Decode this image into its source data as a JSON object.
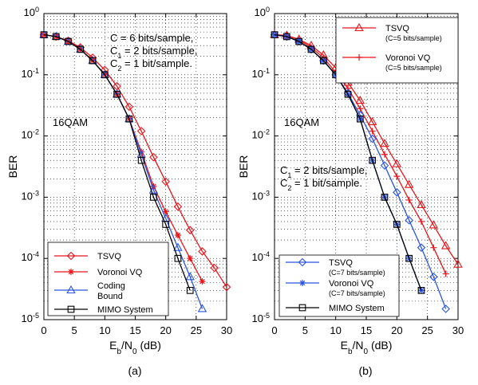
{
  "chart_data": [
    {
      "type": "line",
      "panel_label": "(a)",
      "xlabel": "E_b/N_0 (dB)",
      "ylabel": "BER",
      "xlim": [
        0,
        30
      ],
      "ylim": [
        1e-05,
        1
      ],
      "yscale": "log",
      "xticks": [
        "0",
        "5",
        "10",
        "15",
        "20",
        "25",
        "30"
      ],
      "yticks": [
        "10^0",
        "10^-1",
        "10^-2",
        "10^-3",
        "10^-4",
        "10^-5"
      ],
      "grid": true,
      "annotation_lines": [
        "C = 6 bits/sample,",
        "C_1 = 2 bits/sample,",
        "C_2 = 1 bit/sample."
      ],
      "modulation_label": "16QAM",
      "legend_position": "bottom-left",
      "series": [
        {
          "name": "TSVQ",
          "sub": "",
          "color": "#e8141a",
          "marker": "diamond",
          "x": [
            0,
            2,
            4,
            6,
            8,
            10,
            12,
            14,
            16,
            18,
            20,
            22,
            24,
            26,
            28,
            30
          ],
          "y": [
            0.45,
            0.42,
            0.36,
            0.28,
            0.19,
            0.12,
            0.065,
            0.03,
            0.012,
            0.0045,
            0.0018,
            0.0007,
            0.00029,
            0.00013,
            7e-05,
            3.4e-05
          ]
        },
        {
          "name": "Voronoi VQ",
          "sub": "",
          "color": "#e8141a",
          "marker": "star",
          "x": [
            0,
            2,
            4,
            6,
            8,
            10,
            12,
            14,
            16,
            18,
            20,
            22,
            24,
            26
          ],
          "y": [
            0.45,
            0.42,
            0.35,
            0.26,
            0.17,
            0.1,
            0.048,
            0.019,
            0.0055,
            0.0015,
            0.00058,
            0.00024,
            0.0001,
            4.2e-05
          ]
        },
        {
          "name": "Coding Bound",
          "sub": "",
          "color": "#2a54e0",
          "marker": "triangle",
          "x": [
            0,
            2,
            4,
            6,
            8,
            10,
            12,
            14,
            16,
            18,
            20,
            22,
            24,
            26
          ],
          "y": [
            0.45,
            0.42,
            0.35,
            0.26,
            0.17,
            0.1,
            0.048,
            0.019,
            0.005,
            0.0013,
            0.00045,
            0.00015,
            5e-05,
            1.5e-05
          ]
        },
        {
          "name": "MIMO System",
          "sub": "",
          "color": "#000000",
          "marker": "square",
          "x": [
            0,
            2,
            4,
            6,
            8,
            10,
            12,
            14,
            16,
            18,
            20,
            22,
            24
          ],
          "y": [
            0.45,
            0.42,
            0.35,
            0.26,
            0.17,
            0.1,
            0.048,
            0.019,
            0.004,
            0.001,
            0.00036,
            0.0001,
            3e-05
          ]
        }
      ]
    },
    {
      "type": "line",
      "panel_label": "(b)",
      "xlabel": "E_b/N_0 (dB)",
      "ylabel": "BER",
      "xlim": [
        0,
        30
      ],
      "ylim": [
        1e-05,
        1
      ],
      "yscale": "log",
      "xticks": [
        "0",
        "5",
        "10",
        "15",
        "20",
        "25",
        "30"
      ],
      "yticks": [
        "10^0",
        "10^-1",
        "10^-2",
        "10^-3",
        "10^-4",
        "10^-5"
      ],
      "grid": true,
      "annotation_lines": [
        "C_1 = 2 bits/sample,",
        "C_2 = 1 bit/sample."
      ],
      "modulation_label": "16QAM",
      "legend_position": "top-right and bottom-left",
      "series": [
        {
          "name": "TSVQ",
          "sub": "(C=5 bits/sample)",
          "color": "#e8141a",
          "marker": "triangle",
          "x": [
            0,
            2,
            4,
            6,
            8,
            10,
            12,
            14,
            16,
            18,
            20,
            22,
            24,
            26,
            28,
            30
          ],
          "y": [
            0.45,
            0.44,
            0.38,
            0.3,
            0.21,
            0.13,
            0.075,
            0.038,
            0.017,
            0.0075,
            0.0035,
            0.0016,
            0.00075,
            0.00035,
            0.00016,
            8e-05
          ]
        },
        {
          "name": "Voronoi VQ",
          "sub": "(C=5 bits/sample)",
          "color": "#e8141a",
          "marker": "plus",
          "x": [
            0,
            2,
            4,
            6,
            8,
            10,
            12,
            14,
            16,
            18,
            20,
            22,
            24,
            26,
            28
          ],
          "y": [
            0.45,
            0.44,
            0.37,
            0.28,
            0.19,
            0.11,
            0.06,
            0.028,
            0.012,
            0.005,
            0.0022,
            0.0009,
            0.0004,
            0.00015,
            5.6e-05
          ]
        },
        {
          "name": "TSVQ",
          "sub": "(C=7 bits/sample)",
          "color": "#2a54e0",
          "marker": "diamond",
          "x": [
            0,
            2,
            4,
            6,
            8,
            10,
            12,
            14,
            16,
            18,
            20,
            22,
            24,
            26,
            28
          ],
          "y": [
            0.45,
            0.42,
            0.35,
            0.26,
            0.17,
            0.1,
            0.05,
            0.022,
            0.009,
            0.0033,
            0.0012,
            0.00042,
            0.00015,
            5e-05,
            1.5e-05
          ]
        },
        {
          "name": "Voronoi VQ",
          "sub": "(C=7 bits/sample)",
          "color": "#2a54e0",
          "marker": "star",
          "x": [
            0,
            2,
            4,
            6,
            8,
            10,
            12,
            14,
            16,
            18,
            20,
            22,
            24
          ],
          "y": [
            0.45,
            0.42,
            0.35,
            0.26,
            0.17,
            0.1,
            0.048,
            0.019,
            0.004,
            0.001,
            0.00036,
            0.0001,
            3e-05
          ]
        },
        {
          "name": "MIMO System",
          "sub": "",
          "color": "#000000",
          "marker": "square",
          "x": [
            0,
            2,
            4,
            6,
            8,
            10,
            12,
            14,
            16,
            18,
            20,
            22,
            24
          ],
          "y": [
            0.45,
            0.42,
            0.35,
            0.26,
            0.17,
            0.1,
            0.048,
            0.019,
            0.004,
            0.001,
            0.00036,
            0.0001,
            3e-05
          ]
        }
      ]
    }
  ]
}
